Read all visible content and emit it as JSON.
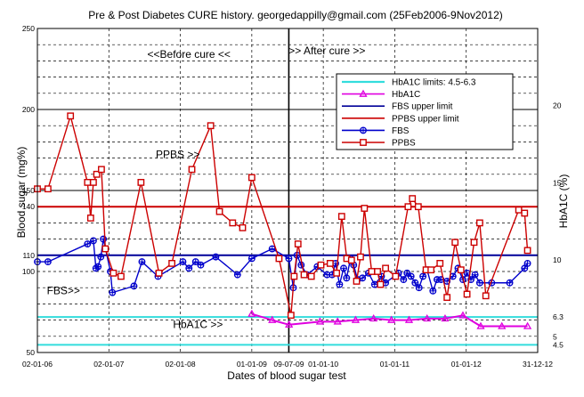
{
  "chart_data": {
    "type": "line",
    "title": "Pre & Post Diabetes CURE history. georgedappilly@gmail.com (25Feb2006-9Nov2012)",
    "xlabel": "Dates of blood sugar test",
    "ylabel": "Blood sugar (mg%)",
    "y2label": "HbA1C (%)",
    "x_range": [
      "2006-01-02",
      "2012-12-31"
    ],
    "ylim": [
      50,
      250
    ],
    "y2lim": [
      4,
      25
    ],
    "x_ticks": [
      {
        "date": "2006-01-02",
        "label": "02-01-06"
      },
      {
        "date": "2007-01-02",
        "label": "02-01-07"
      },
      {
        "date": "2008-01-02",
        "label": "02-01-08"
      },
      {
        "date": "2009-01-01",
        "label": "01-01-09"
      },
      {
        "date": "2009-07-09",
        "label": "09-07-09"
      },
      {
        "date": "2010-01-01",
        "label": "01-01-10"
      },
      {
        "date": "2011-01-01",
        "label": "01-01-11"
      },
      {
        "date": "2012-01-01",
        "label": "01-01-12"
      },
      {
        "date": "2012-12-31",
        "label": "31-12-12"
      }
    ],
    "y_ticks": [
      {
        "value": 250,
        "label": "250"
      },
      {
        "value": 200,
        "label": "200"
      },
      {
        "value": 150,
        "label": "150"
      },
      {
        "value": 140,
        "label": "140"
      },
      {
        "value": 110,
        "label": "110"
      },
      {
        "value": 100,
        "label": "100"
      },
      {
        "value": 50,
        "label": "50"
      }
    ],
    "y2_ticks": [
      {
        "value": 20,
        "label": "20"
      },
      {
        "value": 15,
        "label": "15"
      },
      {
        "value": 10,
        "label": "10"
      },
      {
        "value": 6.3,
        "label": "6.3"
      },
      {
        "value": 5,
        "label": "5"
      },
      {
        "value": 4.5,
        "label": "4.5"
      }
    ],
    "grid": true,
    "divider_date": "2009-07-09",
    "annotations": [
      {
        "text": "<<Before cure <<",
        "date": "2008-02-15",
        "value": 232
      },
      {
        "text": ">> After cure >>",
        "date": "2010-01-20",
        "value": 234
      },
      {
        "text": "PPBS >>",
        "date": "2007-12-20",
        "value": 170
      },
      {
        "text": "FBS>>",
        "date": "2006-05-15",
        "value": 86
      },
      {
        "text": "HbA1C >>",
        "date": "2008-04-01",
        "value": 65
      }
    ],
    "legend_position": "top-right",
    "legend": [
      {
        "label": "HbA1C limits: 4.5-6.3",
        "key": "hba1c_limit"
      },
      {
        "label": "HbA1C",
        "key": "hba1c"
      },
      {
        "label": "FBS upper limit",
        "key": "fbs_limit"
      },
      {
        "label": "PPBS upper limit",
        "key": "ppbs_limit"
      },
      {
        "label": "FBS",
        "key": "fbs"
      },
      {
        "label": "PPBS",
        "key": "ppbs"
      }
    ],
    "reference_lines": [
      {
        "key": "hba1c_limit",
        "axis": "y2",
        "value": 4.5
      },
      {
        "key": "hba1c_limit",
        "axis": "y2",
        "value": 6.3
      },
      {
        "key": "fbs_limit",
        "axis": "y",
        "value": 110
      },
      {
        "key": "ppbs_limit",
        "axis": "y",
        "value": 140
      }
    ],
    "series": [
      {
        "key": "fbs",
        "axis": "y",
        "points": [
          [
            "2006-01-02",
            106
          ],
          [
            "2006-02-25",
            106
          ],
          [
            "2006-09-15",
            117
          ],
          [
            "2006-10-15",
            119
          ],
          [
            "2006-10-28",
            102
          ],
          [
            "2006-11-08",
            103
          ],
          [
            "2006-11-22",
            109
          ],
          [
            "2006-12-05",
            120
          ],
          [
            "2007-01-10",
            100
          ],
          [
            "2007-01-20",
            87
          ],
          [
            "2007-05-10",
            91
          ],
          [
            "2007-06-20",
            106
          ],
          [
            "2007-09-10",
            97
          ],
          [
            "2008-01-15",
            106
          ],
          [
            "2008-02-15",
            102
          ],
          [
            "2008-03-20",
            106
          ],
          [
            "2008-04-15",
            104
          ],
          [
            "2008-07-01",
            109
          ],
          [
            "2008-10-20",
            98
          ],
          [
            "2009-01-01",
            108
          ],
          [
            "2009-04-15",
            114
          ],
          [
            "2009-07-09",
            108
          ],
          [
            "2009-08-01",
            90
          ],
          [
            "2009-08-20",
            110
          ],
          [
            "2009-09-10",
            104
          ],
          [
            "2009-10-10",
            98
          ],
          [
            "2009-12-01",
            103
          ],
          [
            "2010-01-20",
            98
          ],
          [
            "2010-02-15",
            98
          ],
          [
            "2010-03-05",
            105
          ],
          [
            "2010-03-25",
            92
          ],
          [
            "2010-04-15",
            102
          ],
          [
            "2010-04-30",
            96
          ],
          [
            "2010-05-20",
            108
          ],
          [
            "2010-06-05",
            104
          ],
          [
            "2010-06-25",
            95
          ],
          [
            "2010-07-20",
            96
          ],
          [
            "2010-08-20",
            99
          ],
          [
            "2010-09-20",
            92
          ],
          [
            "2010-10-25",
            97
          ],
          [
            "2010-11-15",
            93
          ],
          [
            "2011-01-20",
            99
          ],
          [
            "2011-02-15",
            95
          ],
          [
            "2011-03-05",
            99
          ],
          [
            "2011-03-25",
            97
          ],
          [
            "2011-04-15",
            93
          ],
          [
            "2011-05-05",
            90
          ],
          [
            "2011-05-25",
            97
          ],
          [
            "2011-06-15",
            101
          ],
          [
            "2011-07-15",
            88
          ],
          [
            "2011-08-05",
            95
          ],
          [
            "2011-08-25",
            95
          ],
          [
            "2011-09-25",
            94
          ],
          [
            "2011-10-25",
            97
          ],
          [
            "2011-11-20",
            102
          ],
          [
            "2011-12-15",
            95
          ],
          [
            "2012-01-05",
            99
          ],
          [
            "2012-01-25",
            95
          ],
          [
            "2012-02-15",
            98
          ],
          [
            "2012-03-10",
            93
          ],
          [
            "2012-05-10",
            93
          ],
          [
            "2012-08-10",
            93
          ],
          [
            "2012-10-25",
            102
          ],
          [
            "2012-11-09",
            105
          ]
        ]
      },
      {
        "key": "ppbs",
        "axis": "y",
        "points": [
          [
            "2006-01-02",
            151
          ],
          [
            "2006-02-25",
            151
          ],
          [
            "2006-06-20",
            196
          ],
          [
            "2006-09-15",
            155
          ],
          [
            "2006-10-01",
            133
          ],
          [
            "2006-10-15",
            155
          ],
          [
            "2006-11-01",
            160
          ],
          [
            "2006-11-25",
            163
          ],
          [
            "2006-12-15",
            114
          ],
          [
            "2007-01-25",
            99
          ],
          [
            "2007-03-05",
            97
          ],
          [
            "2007-06-15",
            155
          ],
          [
            "2007-09-15",
            99
          ],
          [
            "2007-11-20",
            105
          ],
          [
            "2008-03-01",
            163
          ],
          [
            "2008-06-05",
            190
          ],
          [
            "2008-07-20",
            137
          ],
          [
            "2008-09-25",
            130
          ],
          [
            "2008-11-15",
            127
          ],
          [
            "2009-01-01",
            158
          ],
          [
            "2009-05-20",
            108
          ],
          [
            "2009-07-20",
            73
          ],
          [
            "2009-08-05",
            97
          ],
          [
            "2009-08-25",
            117
          ],
          [
            "2009-09-25",
            98
          ],
          [
            "2009-11-01",
            97
          ],
          [
            "2009-12-20",
            104
          ],
          [
            "2010-02-05",
            105
          ],
          [
            "2010-03-10",
            99
          ],
          [
            "2010-04-05",
            134
          ],
          [
            "2010-05-01",
            108
          ],
          [
            "2010-05-25",
            107
          ],
          [
            "2010-06-20",
            94
          ],
          [
            "2010-07-10",
            109
          ],
          [
            "2010-07-30",
            139
          ],
          [
            "2010-09-05",
            100
          ],
          [
            "2010-10-05",
            100
          ],
          [
            "2010-10-20",
            92
          ],
          [
            "2010-11-15",
            102
          ],
          [
            "2011-01-05",
            97
          ],
          [
            "2011-03-10",
            140
          ],
          [
            "2011-04-01",
            145
          ],
          [
            "2011-05-01",
            140
          ],
          [
            "2011-06-10",
            101
          ],
          [
            "2011-07-05",
            101
          ],
          [
            "2011-08-20",
            105
          ],
          [
            "2011-09-25",
            84
          ],
          [
            "2011-11-05",
            118
          ],
          [
            "2011-12-05",
            101
          ],
          [
            "2012-01-05",
            86
          ],
          [
            "2012-02-10",
            118
          ],
          [
            "2012-03-10",
            130
          ],
          [
            "2012-04-10",
            85
          ],
          [
            "2012-09-25",
            138
          ],
          [
            "2012-10-25",
            136
          ],
          [
            "2012-11-09",
            113
          ]
        ]
      },
      {
        "key": "hba1c",
        "axis": "y2",
        "points": [
          [
            "2009-01-01",
            6.5
          ],
          [
            "2009-04-15",
            6.1
          ],
          [
            "2009-07-10",
            5.8
          ],
          [
            "2009-12-15",
            6.0
          ],
          [
            "2010-03-15",
            6.0
          ],
          [
            "2010-06-15",
            6.1
          ],
          [
            "2010-09-15",
            6.2
          ],
          [
            "2010-12-15",
            6.1
          ],
          [
            "2011-03-15",
            6.1
          ],
          [
            "2011-06-15",
            6.2
          ],
          [
            "2011-09-15",
            6.2
          ],
          [
            "2011-12-15",
            6.4
          ],
          [
            "2012-03-15",
            5.7
          ],
          [
            "2012-07-01",
            5.7
          ],
          [
            "2012-11-09",
            5.7
          ]
        ]
      }
    ],
    "colors": {
      "fbs": "#0000cc",
      "ppbs": "#cc0000",
      "hba1c": "#e000e0",
      "hba1c_limit": "#33dddd",
      "fbs_limit": "#000099",
      "ppbs_limit": "#cc0000",
      "grid_major": "#000000",
      "grid_minor": "#000000"
    }
  }
}
